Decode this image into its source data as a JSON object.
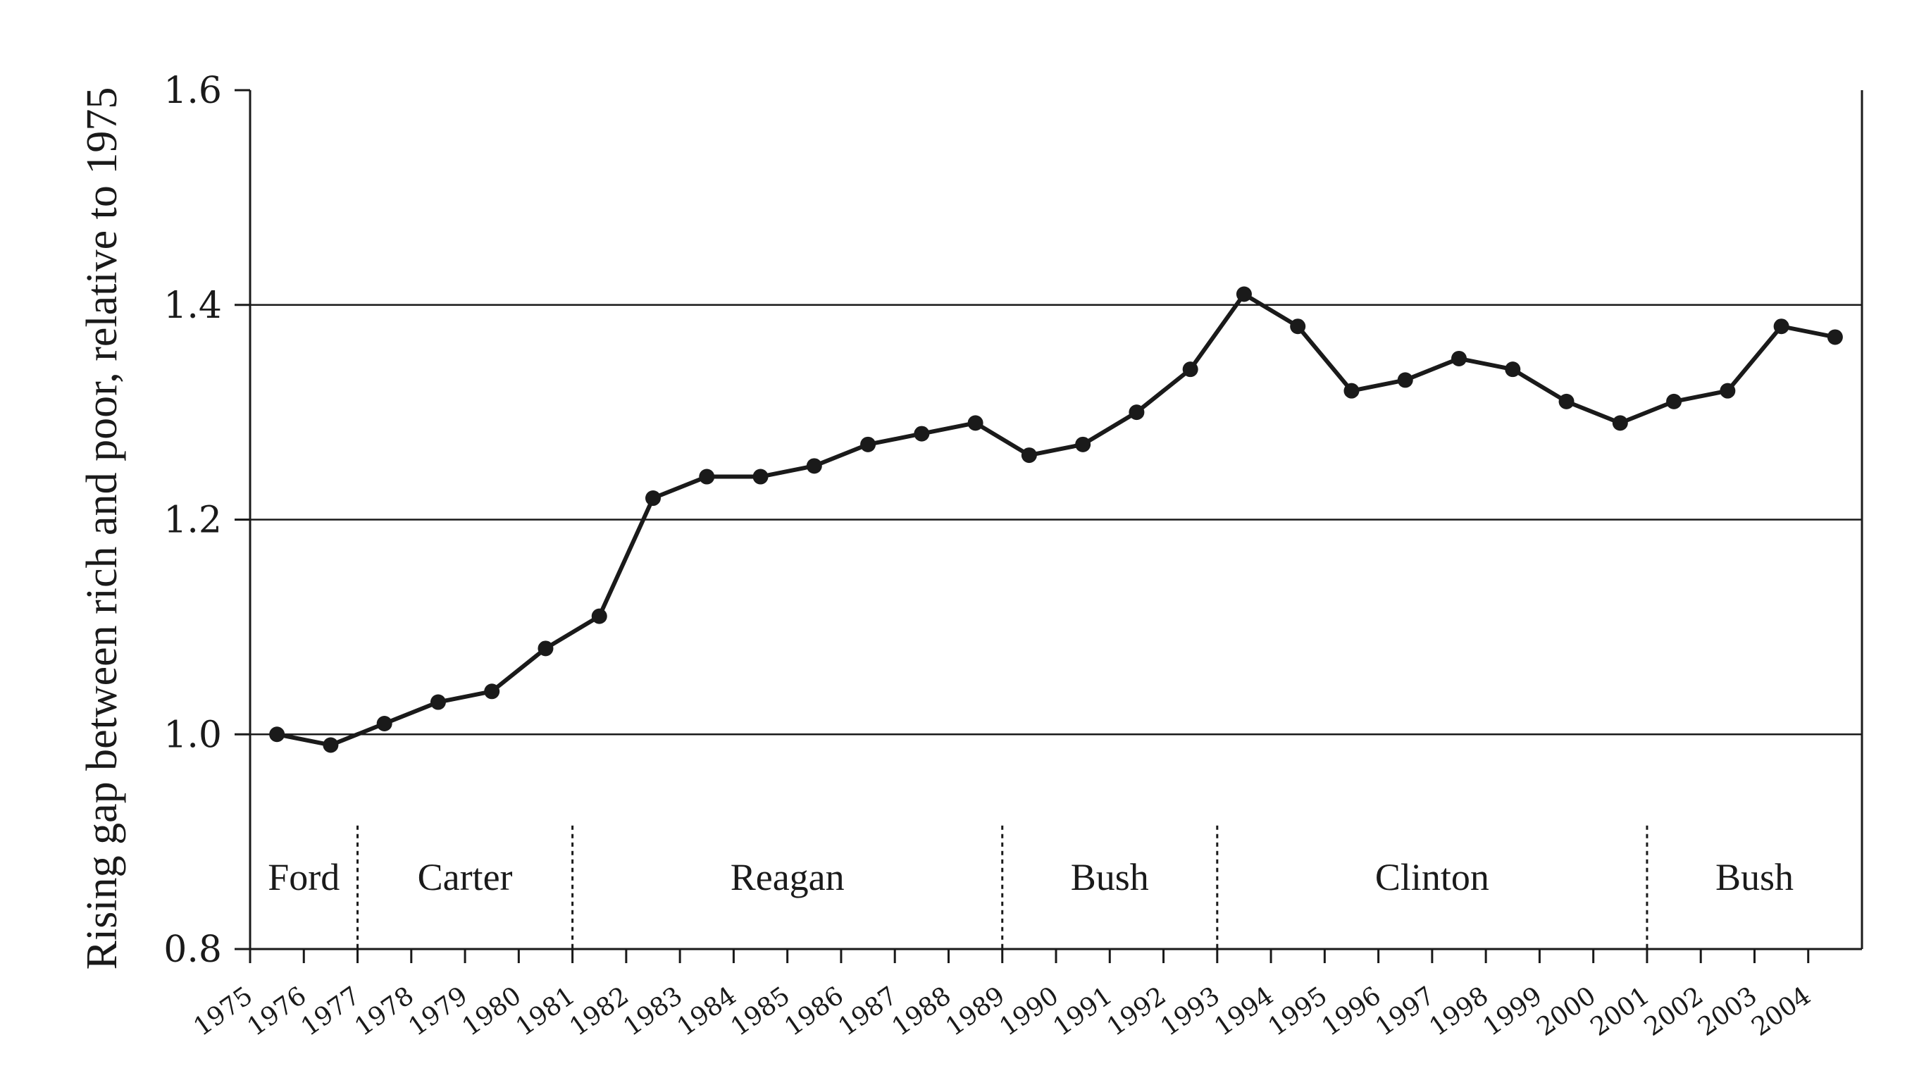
{
  "chart_data": {
    "type": "line",
    "title": "",
    "xlabel": "",
    "ylabel": "Rising gap between rich and poor, relative to 1975",
    "ylim": [
      0.8,
      1.6
    ],
    "yticks": [
      "1.6",
      "1.4",
      "1.2",
      "1.0",
      "0.8"
    ],
    "x_tick_labels": [
      "1975",
      "1976",
      "1977",
      "1978",
      "1979",
      "1980",
      "1981",
      "1982",
      "1983",
      "1984",
      "1985",
      "1986",
      "1987",
      "1988",
      "1989",
      "1990",
      "1991",
      "1992",
      "1993",
      "1994",
      "1995",
      "1996",
      "1997",
      "1998",
      "1999",
      "2000",
      "2001",
      "2002",
      "2003",
      "2004"
    ],
    "series": [
      {
        "x": [
          1975,
          1976,
          1977,
          1978,
          1979,
          1980,
          1981,
          1982,
          1983,
          1984,
          1985,
          1986,
          1987,
          1988,
          1989,
          1990,
          1991,
          1992,
          1993,
          1994,
          1995,
          1996,
          1997,
          1998,
          1999,
          2000,
          2001,
          2002,
          2003,
          2004
        ],
        "values": [
          1.0,
          0.99,
          1.01,
          1.03,
          1.04,
          1.08,
          1.11,
          1.22,
          1.24,
          1.24,
          1.25,
          1.27,
          1.28,
          1.29,
          1.26,
          1.27,
          1.3,
          1.34,
          1.41,
          1.38,
          1.32,
          1.33,
          1.35,
          1.34,
          1.31,
          1.29,
          1.31,
          1.32,
          1.38,
          1.37
        ]
      }
    ],
    "grid": "horizontal",
    "administrations": [
      {
        "label": "Ford",
        "start_year": 1975,
        "end_year": 1977
      },
      {
        "label": "Carter",
        "start_year": 1977,
        "end_year": 1981
      },
      {
        "label": "Reagan",
        "start_year": 1981,
        "end_year": 1989
      },
      {
        "label": "Bush",
        "start_year": 1989,
        "end_year": 1993
      },
      {
        "label": "Clinton",
        "start_year": 1993,
        "end_year": 2001
      },
      {
        "label": "Bush",
        "start_year": 2001,
        "end_year": 2005
      }
    ],
    "line_color": "#1a1a1a"
  }
}
